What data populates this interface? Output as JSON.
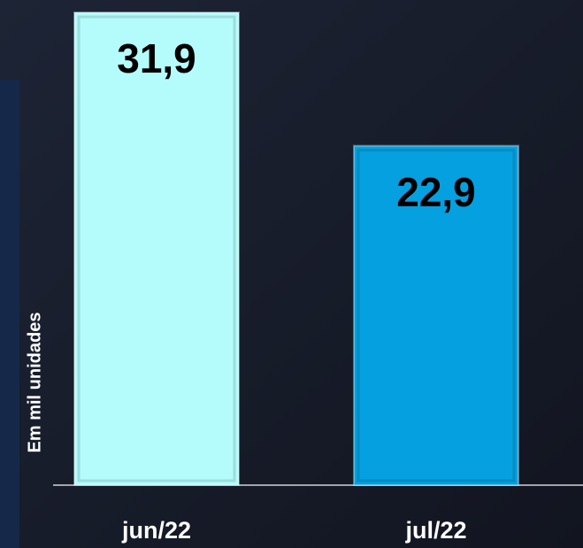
{
  "chart_data": {
    "type": "bar",
    "y_axis_label": "Em mil unidades",
    "categories": [
      "jun/22",
      "jul/22"
    ],
    "values": [
      31.9,
      22.9
    ],
    "value_labels": [
      "31,9",
      "22,9"
    ],
    "colors": [
      "#b4fcfc",
      "#05a0e0"
    ],
    "ylim": [
      0,
      32
    ]
  }
}
